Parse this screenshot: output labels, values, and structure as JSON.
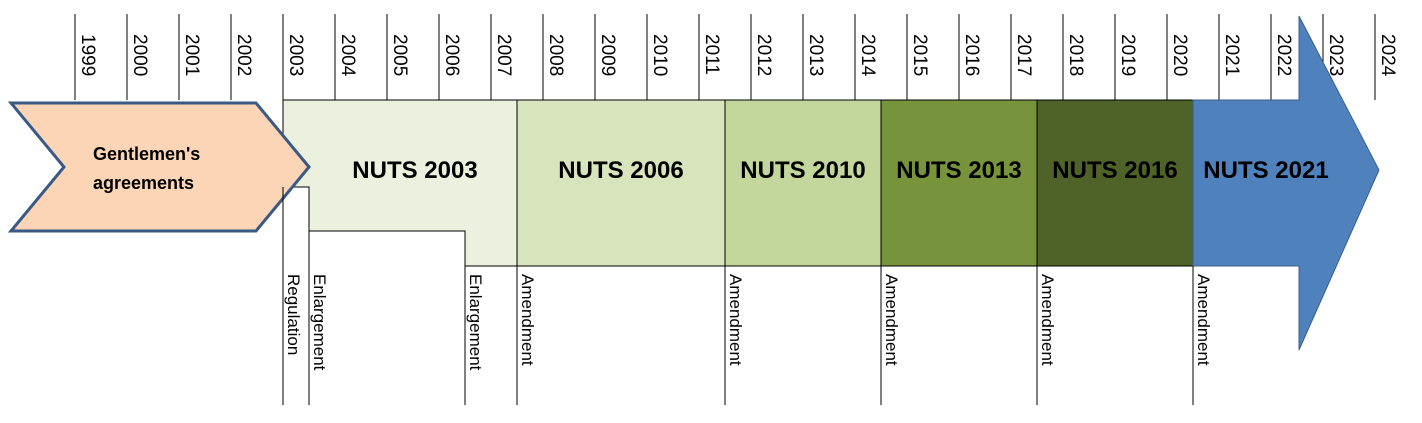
{
  "years": [
    "1999",
    "2000",
    "2001",
    "2002",
    "2003",
    "2004",
    "2005",
    "2006",
    "2007",
    "2008",
    "2009",
    "2010",
    "2011",
    "2012",
    "2013",
    "2014",
    "2015",
    "2016",
    "2017",
    "2018",
    "2019",
    "2020",
    "2021",
    "2022",
    "2023",
    "2024"
  ],
  "start_shape": {
    "label_line1": "Gentlemen's",
    "label_line2": "agreements",
    "fill": "#fbd5b5",
    "stroke": "#3a5a85"
  },
  "periods": [
    {
      "label": "NUTS 2003",
      "start_year": 2003,
      "end_year": 2007.5,
      "fill": "#ebf1de"
    },
    {
      "label": "NUTS 2006",
      "start_year": 2007.5,
      "end_year": 2011.5,
      "fill": "#d7e4bc"
    },
    {
      "label": "NUTS 2010",
      "start_year": 2011.5,
      "end_year": 2014.5,
      "fill": "#c3d69b"
    },
    {
      "label": "NUTS 2013",
      "start_year": 2014.5,
      "end_year": 2017.5,
      "fill": "#77933c"
    },
    {
      "label": "NUTS 2016",
      "start_year": 2017.5,
      "end_year": 2020.5,
      "fill": "#4f6228"
    },
    {
      "label": "NUTS 2021",
      "start_year": 2020.5,
      "end_year": 2024,
      "fill": "#4f81bd"
    }
  ],
  "events": [
    {
      "label": "Regulation",
      "year": 2003
    },
    {
      "label": "Enlargement",
      "year": 2003.5
    },
    {
      "label": "Enlargement",
      "year": 2006.5
    },
    {
      "label": "Amendment",
      "year": 2007.5
    },
    {
      "label": "Amendment",
      "year": 2011.5
    },
    {
      "label": "Amendment",
      "year": 2014.5
    },
    {
      "label": "Amendment",
      "year": 2017.5
    },
    {
      "label": "Amendment",
      "year": 2020.5
    }
  ]
}
